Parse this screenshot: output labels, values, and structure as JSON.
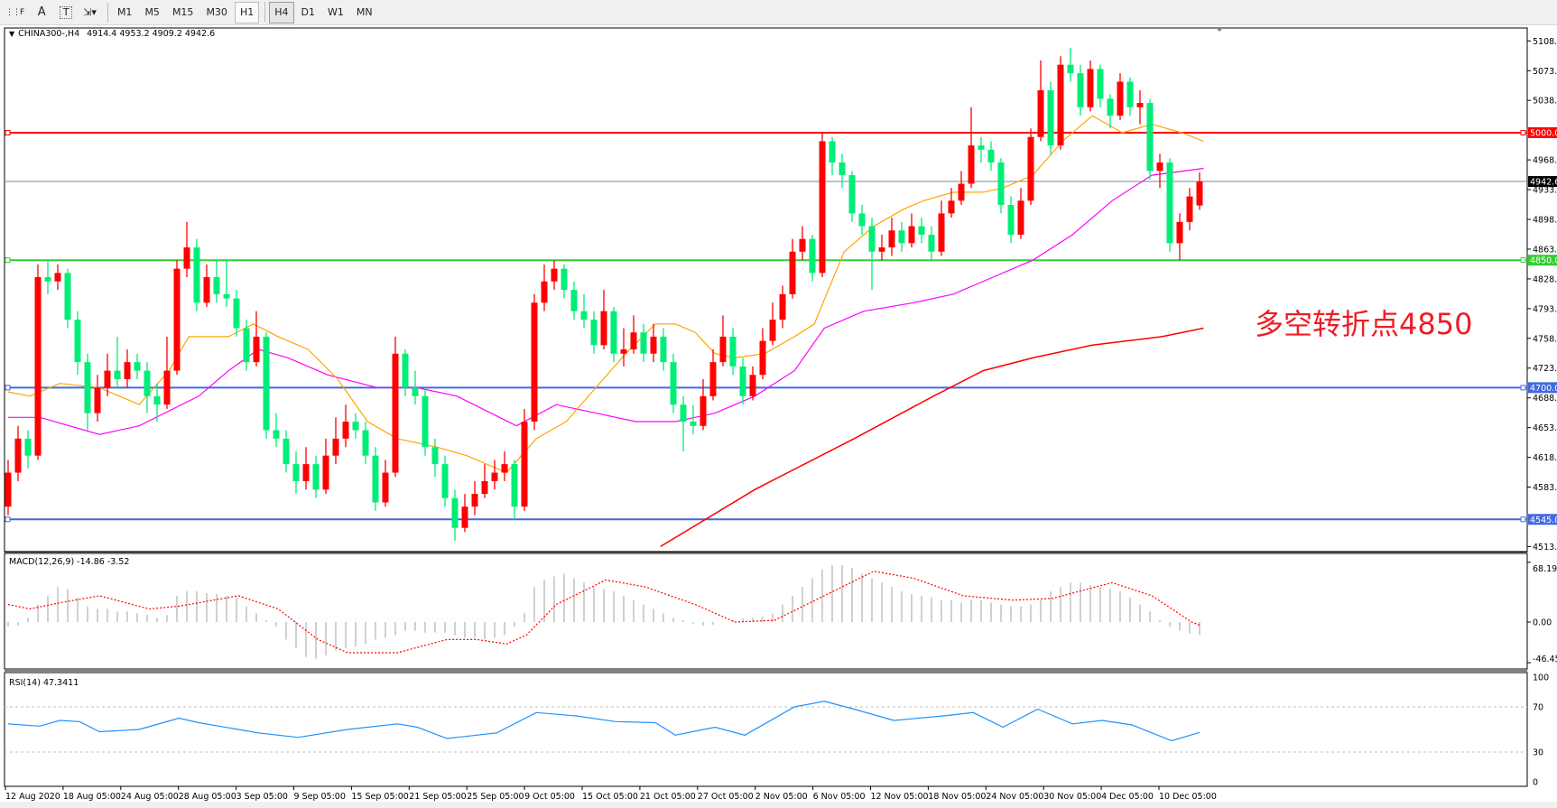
{
  "toolbar": {
    "tools": [
      {
        "name": "grid-tool-icon",
        "label": ""
      },
      {
        "name": "text-tool",
        "label": "A"
      },
      {
        "name": "text-label-tool",
        "label": "T"
      },
      {
        "name": "arrows-tool-icon",
        "label": "⇲▾"
      }
    ],
    "timeframes": [
      "M1",
      "M5",
      "M15",
      "M30",
      "H1",
      "H4",
      "D1",
      "W1",
      "MN"
    ],
    "active_timeframe": "H4"
  },
  "chart": {
    "symbol_line": "CHINA300-,H4",
    "ohlc_line": "4914.4 4953.2 4909.2 4942.6",
    "annotation": "多空转折点4850",
    "colors": {
      "bull": "#ff0000",
      "bear": "#00ee78",
      "ma_fast": "#ffa500",
      "ma_mid": "#ff00ff",
      "ma_slow": "#ff0000",
      "bid_line": "#778899",
      "resistance": "#ff0000",
      "support": "#32cd32",
      "level": "#4169e1",
      "macd_hist": "#c0c0c0",
      "macd_signal": "#ff0000",
      "rsi": "#1e90ff"
    },
    "horizontal_lines": [
      {
        "price": 5000.0,
        "label": "5000.0",
        "color": "#ff0000"
      },
      {
        "price": 4850.0,
        "label": "4850.0",
        "color": "#32cd32"
      },
      {
        "price": 4700.0,
        "label": "4700.0",
        "color": "#4169e1"
      },
      {
        "price": 4545.0,
        "label": "4545.0",
        "color": "#4169e1"
      }
    ],
    "bid": {
      "price": 4942.6,
      "label": "4942.6"
    },
    "price_ticks": [
      "5108.0",
      "5073.0",
      "5038.0",
      "4968.0",
      "4933.0",
      "4898.0",
      "4863.0",
      "4828.0",
      "4793.0",
      "4758.0",
      "4723.0",
      "4688.0",
      "4653.0",
      "4618.0",
      "4583.0",
      "4513.0"
    ],
    "time_labels": [
      "12 Aug 2020",
      "18 Aug 05:00",
      "24 Aug 05:00",
      "28 Aug 05:00",
      "3 Sep 05:00",
      "9 Sep 05:00",
      "15 Sep 05:00",
      "21 Sep 05:00",
      "25 Sep 05:00",
      "9 Oct 05:00",
      "15 Oct 05:00",
      "21 Oct 05:00",
      "27 Oct 05:00",
      "2 Nov 05:00",
      "6 Nov 05:00",
      "12 Nov 05:00",
      "18 Nov 05:00",
      "24 Nov 05:00",
      "30 Nov 05:00",
      "4 Dec 05:00",
      "10 Dec 05:00"
    ],
    "macd": {
      "label": "MACD(12,26,9) -14.86 -3.52",
      "ticks": [
        "68.19",
        "0.00",
        "-46.45"
      ]
    },
    "rsi": {
      "label": "RSI(14) 47.3411",
      "ticks": [
        "100",
        "70",
        "30",
        "0"
      ]
    }
  },
  "chart_data": {
    "type": "candlestick",
    "price_range": [
      4505,
      5120
    ],
    "candles": [
      [
        4560,
        4615,
        4550,
        4600
      ],
      [
        4600,
        4655,
        4590,
        4640
      ],
      [
        4640,
        4650,
        4605,
        4620
      ],
      [
        4620,
        4845,
        4615,
        4830
      ],
      [
        4830,
        4850,
        4810,
        4825
      ],
      [
        4825,
        4845,
        4815,
        4835
      ],
      [
        4835,
        4840,
        4770,
        4780
      ],
      [
        4780,
        4790,
        4715,
        4730
      ],
      [
        4730,
        4740,
        4650,
        4670
      ],
      [
        4670,
        4715,
        4660,
        4700
      ],
      [
        4700,
        4740,
        4690,
        4720
      ],
      [
        4720,
        4760,
        4700,
        4710
      ],
      [
        4710,
        4745,
        4700,
        4730
      ],
      [
        4730,
        4740,
        4710,
        4720
      ],
      [
        4720,
        4730,
        4670,
        4690
      ],
      [
        4690,
        4705,
        4660,
        4680
      ],
      [
        4680,
        4760,
        4675,
        4720
      ],
      [
        4720,
        4850,
        4715,
        4840
      ],
      [
        4840,
        4895,
        4830,
        4865
      ],
      [
        4865,
        4875,
        4790,
        4800
      ],
      [
        4800,
        4845,
        4795,
        4830
      ],
      [
        4830,
        4850,
        4800,
        4810
      ],
      [
        4810,
        4850,
        4795,
        4805
      ],
      [
        4805,
        4815,
        4760,
        4770
      ],
      [
        4770,
        4780,
        4720,
        4730
      ],
      [
        4730,
        4790,
        4725,
        4760
      ],
      [
        4760,
        4765,
        4640,
        4650
      ],
      [
        4650,
        4670,
        4630,
        4640
      ],
      [
        4640,
        4650,
        4600,
        4610
      ],
      [
        4610,
        4625,
        4575,
        4590
      ],
      [
        4590,
        4630,
        4580,
        4610
      ],
      [
        4610,
        4620,
        4570,
        4580
      ],
      [
        4580,
        4640,
        4575,
        4620
      ],
      [
        4620,
        4665,
        4610,
        4640
      ],
      [
        4640,
        4680,
        4630,
        4660
      ],
      [
        4660,
        4670,
        4640,
        4650
      ],
      [
        4650,
        4660,
        4610,
        4620
      ],
      [
        4620,
        4630,
        4555,
        4565
      ],
      [
        4565,
        4615,
        4560,
        4600
      ],
      [
        4600,
        4760,
        4595,
        4740
      ],
      [
        4740,
        4745,
        4690,
        4700
      ],
      [
        4700,
        4720,
        4680,
        4690
      ],
      [
        4690,
        4700,
        4620,
        4630
      ],
      [
        4630,
        4640,
        4595,
        4610
      ],
      [
        4610,
        4620,
        4560,
        4570
      ],
      [
        4570,
        4580,
        4520,
        4535
      ],
      [
        4535,
        4575,
        4530,
        4560
      ],
      [
        4560,
        4590,
        4550,
        4575
      ],
      [
        4575,
        4610,
        4570,
        4590
      ],
      [
        4590,
        4615,
        4580,
        4600
      ],
      [
        4600,
        4625,
        4590,
        4610
      ],
      [
        4610,
        4615,
        4545,
        4560
      ],
      [
        4560,
        4675,
        4555,
        4660
      ],
      [
        4660,
        4810,
        4650,
        4800
      ],
      [
        4800,
        4845,
        4790,
        4825
      ],
      [
        4825,
        4850,
        4815,
        4840
      ],
      [
        4840,
        4845,
        4805,
        4815
      ],
      [
        4815,
        4825,
        4780,
        4790
      ],
      [
        4790,
        4810,
        4770,
        4780
      ],
      [
        4780,
        4790,
        4740,
        4750
      ],
      [
        4750,
        4815,
        4745,
        4790
      ],
      [
        4790,
        4795,
        4730,
        4740
      ],
      [
        4740,
        4770,
        4725,
        4745
      ],
      [
        4745,
        4785,
        4740,
        4765
      ],
      [
        4765,
        4775,
        4730,
        4740
      ],
      [
        4740,
        4775,
        4730,
        4760
      ],
      [
        4760,
        4770,
        4720,
        4730
      ],
      [
        4730,
        4740,
        4670,
        4680
      ],
      [
        4680,
        4690,
        4625,
        4660
      ],
      [
        4660,
        4680,
        4645,
        4655
      ],
      [
        4655,
        4710,
        4650,
        4690
      ],
      [
        4690,
        4745,
        4685,
        4730
      ],
      [
        4730,
        4785,
        4725,
        4760
      ],
      [
        4760,
        4770,
        4715,
        4725
      ],
      [
        4725,
        4735,
        4680,
        4690
      ],
      [
        4690,
        4725,
        4685,
        4715
      ],
      [
        4715,
        4770,
        4710,
        4755
      ],
      [
        4755,
        4800,
        4750,
        4780
      ],
      [
        4780,
        4820,
        4770,
        4810
      ],
      [
        4810,
        4875,
        4805,
        4860
      ],
      [
        4860,
        4890,
        4850,
        4875
      ],
      [
        4875,
        4880,
        4825,
        4835
      ],
      [
        4835,
        5000,
        4830,
        4990
      ],
      [
        4990,
        4995,
        4950,
        4965
      ],
      [
        4965,
        4975,
        4935,
        4950
      ],
      [
        4950,
        4955,
        4895,
        4905
      ],
      [
        4905,
        4915,
        4880,
        4890
      ],
      [
        4890,
        4900,
        4815,
        4860
      ],
      [
        4860,
        4880,
        4850,
        4865
      ],
      [
        4865,
        4900,
        4855,
        4885
      ],
      [
        4885,
        4895,
        4860,
        4870
      ],
      [
        4870,
        4905,
        4865,
        4890
      ],
      [
        4890,
        4900,
        4870,
        4880
      ],
      [
        4880,
        4890,
        4850,
        4860
      ],
      [
        4860,
        4920,
        4855,
        4905
      ],
      [
        4905,
        4935,
        4900,
        4920
      ],
      [
        4920,
        4955,
        4915,
        4940
      ],
      [
        4940,
        5030,
        4935,
        4985
      ],
      [
        4985,
        4995,
        4965,
        4980
      ],
      [
        4980,
        4990,
        4955,
        4965
      ],
      [
        4965,
        4970,
        4905,
        4915
      ],
      [
        4915,
        4925,
        4870,
        4880
      ],
      [
        4880,
        4935,
        4875,
        4920
      ],
      [
        4920,
        5005,
        4915,
        4995
      ],
      [
        4995,
        5085,
        4990,
        5050
      ],
      [
        5050,
        5060,
        4975,
        4985
      ],
      [
        4985,
        5090,
        4980,
        5080
      ],
      [
        5080,
        5100,
        5060,
        5070
      ],
      [
        5070,
        5080,
        5020,
        5030
      ],
      [
        5030,
        5085,
        5025,
        5075
      ],
      [
        5075,
        5080,
        5030,
        5040
      ],
      [
        5040,
        5045,
        5005,
        5020
      ],
      [
        5020,
        5070,
        5015,
        5060
      ],
      [
        5060,
        5065,
        5020,
        5030
      ],
      [
        5030,
        5050,
        5010,
        5035
      ],
      [
        5035,
        5040,
        4945,
        4955
      ],
      [
        4955,
        4975,
        4935,
        4965
      ],
      [
        4965,
        4970,
        4860,
        4870
      ],
      [
        4870,
        4905,
        4850,
        4895
      ],
      [
        4895,
        4935,
        4885,
        4925
      ],
      [
        4914.4,
        4953.2,
        4909.2,
        4942.6
      ]
    ],
    "ma_fast": [
      [
        0,
        4695
      ],
      [
        2.2,
        4690
      ],
      [
        5.2,
        4705
      ],
      [
        9.2,
        4700
      ],
      [
        13.2,
        4680
      ],
      [
        16.2,
        4720
      ],
      [
        18.2,
        4760
      ],
      [
        22.2,
        4760
      ],
      [
        24.7,
        4775
      ],
      [
        27.2,
        4760
      ],
      [
        30.2,
        4745
      ],
      [
        33.2,
        4710
      ],
      [
        36.2,
        4660
      ],
      [
        39.2,
        4640
      ],
      [
        43.2,
        4630
      ],
      [
        46.2,
        4620
      ],
      [
        50.2,
        4600
      ],
      [
        53.2,
        4640
      ],
      [
        56.2,
        4660
      ],
      [
        59.2,
        4700
      ],
      [
        62.2,
        4740
      ],
      [
        65.2,
        4775
      ],
      [
        67.2,
        4775
      ],
      [
        69.2,
        4765
      ],
      [
        71.2,
        4740
      ],
      [
        73.2,
        4735
      ],
      [
        76.2,
        4740
      ],
      [
        79.2,
        4760
      ],
      [
        81.2,
        4775
      ],
      [
        84.2,
        4860
      ],
      [
        87.2,
        4890
      ],
      [
        90.2,
        4910
      ],
      [
        92.2,
        4920
      ],
      [
        95.2,
        4930
      ],
      [
        98.2,
        4930
      ],
      [
        100.2,
        4935
      ],
      [
        103.2,
        4950
      ],
      [
        106.2,
        4990
      ],
      [
        109.2,
        5020
      ],
      [
        112.2,
        5000
      ],
      [
        115.2,
        5010
      ],
      [
        118.2,
        5000
      ],
      [
        120.4,
        4990
      ]
    ],
    "ma_mid": [
      [
        0,
        4665
      ],
      [
        3.2,
        4665
      ],
      [
        9.2,
        4645
      ],
      [
        13.2,
        4655
      ],
      [
        19.2,
        4690
      ],
      [
        22.2,
        4720
      ],
      [
        25.2,
        4745
      ],
      [
        28.2,
        4735
      ],
      [
        32.2,
        4715
      ],
      [
        37.2,
        4700
      ],
      [
        41.2,
        4700
      ],
      [
        45.2,
        4690
      ],
      [
        51.2,
        4655
      ],
      [
        55.2,
        4680
      ],
      [
        59.2,
        4670
      ],
      [
        63.2,
        4660
      ],
      [
        67.2,
        4660
      ],
      [
        71.2,
        4670
      ],
      [
        75.2,
        4690
      ],
      [
        79.2,
        4720
      ],
      [
        82.2,
        4770
      ],
      [
        86.2,
        4790
      ],
      [
        91.2,
        4800
      ],
      [
        95.2,
        4810
      ],
      [
        99.2,
        4830
      ],
      [
        103.2,
        4850
      ],
      [
        107.2,
        4880
      ],
      [
        111.2,
        4920
      ],
      [
        115.2,
        4950
      ],
      [
        120.4,
        4958
      ]
    ],
    "ma_slow": [
      [
        65.7,
        4513
      ],
      [
        75.2,
        4580
      ],
      [
        85.2,
        4640
      ],
      [
        93.2,
        4690
      ],
      [
        98.2,
        4720
      ],
      [
        103.2,
        4735
      ],
      [
        109.2,
        4750
      ],
      [
        116.2,
        4760
      ],
      [
        120.4,
        4770
      ]
    ],
    "macd_range": [
      -46.45,
      68.19
    ],
    "macd_hist": [
      -5,
      -4,
      5,
      20,
      30,
      40,
      38,
      28,
      18,
      15,
      15,
      12,
      12,
      10,
      8,
      5,
      8,
      30,
      35,
      35,
      33,
      32,
      30,
      28,
      18,
      10,
      2,
      -5,
      -20,
      -30,
      -40,
      -42,
      -38,
      -32,
      -30,
      -28,
      -25,
      -20,
      -18,
      -15,
      -10,
      -10,
      -12,
      -12,
      -12,
      -15,
      -18,
      -18,
      -20,
      -18,
      -15,
      -5,
      10,
      40,
      48,
      52,
      55,
      50,
      45,
      40,
      38,
      35,
      30,
      25,
      20,
      15,
      10,
      5,
      2,
      -2,
      -4,
      -3,
      0,
      2,
      4,
      5,
      6,
      10,
      20,
      30,
      40,
      50,
      60,
      65,
      65,
      62,
      55,
      50,
      45,
      40,
      35,
      32,
      30,
      28,
      25,
      25,
      22,
      25,
      25,
      22,
      20,
      18,
      18,
      20,
      25,
      35,
      40,
      45,
      45,
      42,
      40,
      38,
      35,
      28,
      20,
      12,
      2,
      -5,
      -10,
      -13,
      -14.86
    ],
    "macd_signal": [
      [
        0,
        20
      ],
      [
        2.2,
        15
      ],
      [
        5.2,
        22
      ],
      [
        9.2,
        30
      ],
      [
        14.2,
        15
      ],
      [
        17.2,
        18
      ],
      [
        23.2,
        30
      ],
      [
        27.2,
        15
      ],
      [
        31.2,
        -20
      ],
      [
        34.2,
        -35
      ],
      [
        39.2,
        -35
      ],
      [
        44.2,
        -20
      ],
      [
        47.2,
        -20
      ],
      [
        50.2,
        -25
      ],
      [
        52.2,
        -15
      ],
      [
        55.2,
        20
      ],
      [
        60.2,
        48
      ],
      [
        64.2,
        40
      ],
      [
        69.2,
        20
      ],
      [
        73.2,
        0
      ],
      [
        77.2,
        2
      ],
      [
        82.2,
        30
      ],
      [
        87.2,
        58
      ],
      [
        91.2,
        50
      ],
      [
        96.2,
        30
      ],
      [
        101.2,
        25
      ],
      [
        105.2,
        27
      ],
      [
        111.2,
        45
      ],
      [
        115.2,
        30
      ],
      [
        119.2,
        0
      ],
      [
        120,
        -3.52
      ]
    ],
    "rsi_levels": [
      70,
      30
    ],
    "rsi": [
      [
        0,
        55
      ],
      [
        3.2,
        53
      ],
      [
        5.2,
        58
      ],
      [
        7.2,
        57
      ],
      [
        9.2,
        48
      ],
      [
        13.2,
        50
      ],
      [
        17.2,
        60
      ],
      [
        19.2,
        56
      ],
      [
        23.2,
        50
      ],
      [
        25.2,
        47
      ],
      [
        29.2,
        43
      ],
      [
        34.2,
        50
      ],
      [
        39.2,
        55
      ],
      [
        41.2,
        52
      ],
      [
        44.2,
        42
      ],
      [
        49.2,
        47
      ],
      [
        53.2,
        65
      ],
      [
        57.2,
        62
      ],
      [
        61.2,
        57
      ],
      [
        65.2,
        56
      ],
      [
        67.2,
        45
      ],
      [
        71.2,
        52
      ],
      [
        74.2,
        45
      ],
      [
        79.2,
        70
      ],
      [
        82.2,
        75
      ],
      [
        85.2,
        68
      ],
      [
        89.2,
        58
      ],
      [
        94.2,
        62
      ],
      [
        97.2,
        65
      ],
      [
        100.2,
        52
      ],
      [
        103.7,
        68
      ],
      [
        107.2,
        55
      ],
      [
        110.2,
        58
      ],
      [
        113.2,
        54
      ],
      [
        115.2,
        47
      ],
      [
        117.2,
        40
      ],
      [
        120,
        47.34
      ]
    ]
  }
}
